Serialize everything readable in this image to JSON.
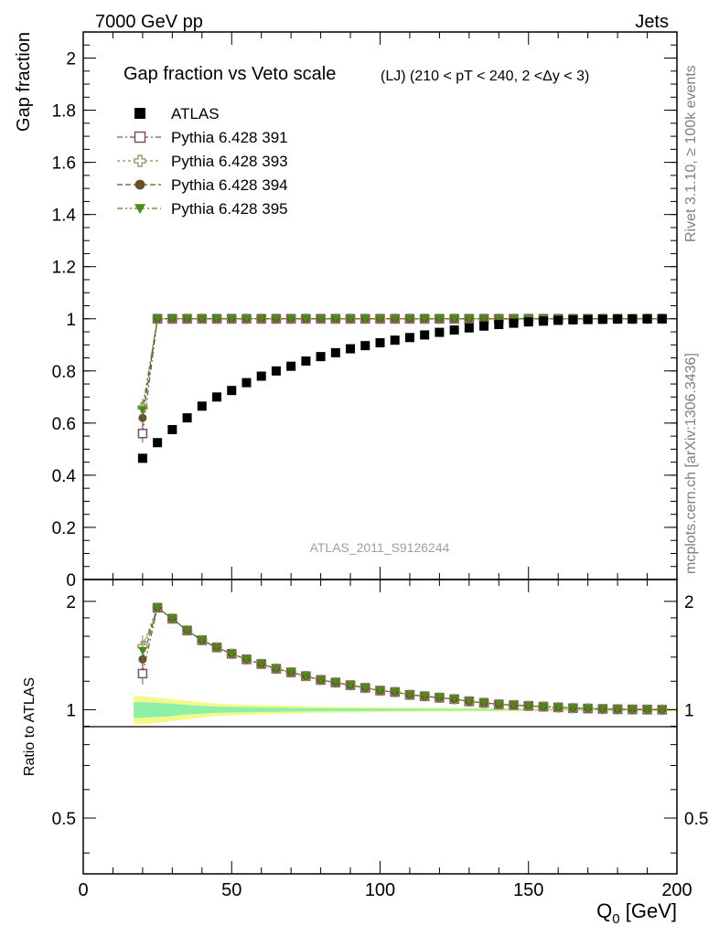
{
  "header": {
    "left": "7000 GeV pp",
    "right": "Jets"
  },
  "side_labels": {
    "rivet": "Rivet 3.1.10, ≥ 100k events",
    "mcplots": "mcplots.cern.ch [arXiv:1306.3436]"
  },
  "watermark": "ATLAS_2011_S9126244",
  "chart_data": [
    {
      "type": "scatter",
      "title": "Gap fraction vs Veto scale",
      "subtitle": "(LJ) (210 < pT < 240, 2 <Δy < 3)",
      "xlabel": "Q0 [GeV]",
      "xlabel_main": "Q",
      "xlabel_sub": "0",
      "xlabel_unit": " [GeV]",
      "ylabel": "Gap fraction",
      "xlim": [
        0,
        200
      ],
      "ylim": [
        0,
        2.1
      ],
      "xticks": [
        0,
        50,
        100,
        150,
        200
      ],
      "yticks": [
        0,
        0.2,
        0.4,
        0.6,
        0.8,
        1,
        1.2,
        1.4,
        1.6,
        1.8,
        2
      ],
      "ytick_labels": [
        "0",
        "0.2",
        "0.4",
        "0.6",
        "0.8",
        "1",
        "1.2",
        "1.4",
        "1.6",
        "1.8",
        "2"
      ],
      "legend_position": "top-left",
      "x": [
        20,
        25,
        30,
        35,
        40,
        45,
        50,
        55,
        60,
        65,
        70,
        75,
        80,
        85,
        90,
        95,
        100,
        105,
        110,
        115,
        120,
        125,
        130,
        135,
        140,
        145,
        150,
        155,
        160,
        165,
        170,
        175,
        180,
        185,
        190,
        195
      ],
      "series": [
        {
          "name": "ATLAS",
          "color": "#000000",
          "marker": "filled-square",
          "values": [
            0.465,
            0.525,
            0.575,
            0.62,
            0.665,
            0.7,
            0.725,
            0.755,
            0.78,
            0.8,
            0.818,
            0.838,
            0.855,
            0.87,
            0.885,
            0.897,
            0.908,
            0.918,
            0.928,
            0.938,
            0.948,
            0.957,
            0.965,
            0.972,
            0.978,
            0.983,
            0.988,
            0.991,
            0.994,
            0.996,
            0.997,
            0.998,
            0.999,
            0.999,
            1.0,
            1.0
          ]
        },
        {
          "name": "Pythia 6.428 391",
          "color": "#7b4f68",
          "marker": "open-square",
          "values": [
            0.56,
            1,
            1,
            1,
            1,
            1,
            1,
            1,
            1,
            1,
            1,
            1,
            1,
            1,
            1,
            1,
            1,
            1,
            1,
            1,
            1,
            1,
            1,
            1,
            1,
            1,
            1,
            1,
            1,
            1,
            1,
            1,
            1,
            1,
            1,
            1
          ]
        },
        {
          "name": "Pythia 6.428 393",
          "color": "#9a8a5a",
          "marker": "open-cross",
          "values": [
            0.66,
            1,
            1,
            1,
            1,
            1,
            1,
            1,
            1,
            1,
            1,
            1,
            1,
            1,
            1,
            1,
            1,
            1,
            1,
            1,
            1,
            1,
            1,
            1,
            1,
            1,
            1,
            1,
            1,
            1,
            1,
            1,
            1,
            1,
            1,
            1
          ]
        },
        {
          "name": "Pythia 6.428 394",
          "color": "#6b4e2a",
          "marker": "filled-circle",
          "values": [
            0.62,
            1,
            1,
            1,
            1,
            1,
            1,
            1,
            1,
            1,
            1,
            1,
            1,
            1,
            1,
            1,
            1,
            1,
            1,
            1,
            1,
            1,
            1,
            1,
            1,
            1,
            1,
            1,
            1,
            1,
            1,
            1,
            1,
            1,
            1,
            1
          ]
        },
        {
          "name": "Pythia 6.428 395",
          "color": "#4a8a18",
          "marker": "filled-triangle-down",
          "values": [
            0.65,
            1,
            1,
            1,
            1,
            1,
            1,
            1,
            1,
            1,
            1,
            1,
            1,
            1,
            1,
            1,
            1,
            1,
            1,
            1,
            1,
            1,
            1,
            1,
            1,
            1,
            1,
            1,
            1,
            1,
            1,
            1,
            1,
            1,
            1,
            1
          ]
        }
      ]
    },
    {
      "type": "scatter",
      "title": "",
      "xlabel": "Q0 [GeV]",
      "ylabel": "Ratio to ATLAS",
      "xlim": [
        0,
        200
      ],
      "ylim": [
        0.35,
        2.3
      ],
      "yscale": "log",
      "xticks": [
        0,
        50,
        100,
        150,
        200
      ],
      "xtick_labels": [
        "0",
        "50",
        "100",
        "150",
        "200"
      ],
      "yticks": [
        0.5,
        1,
        2
      ],
      "ytick_labels": [
        "0.5",
        "1",
        "2"
      ],
      "reference_line": 1,
      "band_x": [
        17,
        20,
        25,
        30,
        35,
        40,
        45,
        50,
        60,
        70,
        80,
        100,
        120,
        150,
        200
      ],
      "band_outer": [
        0.09,
        0.09,
        0.08,
        0.07,
        0.06,
        0.05,
        0.04,
        0.035,
        0.03,
        0.025,
        0.02,
        0.015,
        0.012,
        0.01,
        0.01
      ],
      "band_inner": [
        0.05,
        0.05,
        0.045,
        0.04,
        0.03,
        0.025,
        0.02,
        0.018,
        0.015,
        0.012,
        0.01,
        0.008,
        0.006,
        0.005,
        0.005
      ],
      "x": [
        20,
        25,
        30,
        35,
        40,
        45,
        50,
        55,
        60,
        65,
        70,
        75,
        80,
        85,
        90,
        95,
        100,
        105,
        110,
        115,
        120,
        125,
        130,
        135,
        140,
        145,
        150,
        155,
        160,
        165,
        170,
        175,
        180,
        185,
        190,
        195
      ],
      "series": [
        {
          "name": "Pythia 6.428 391",
          "color": "#7b4f68",
          "marker": "open-square",
          "values": [
            1.26,
            1.92,
            1.79,
            1.66,
            1.56,
            1.49,
            1.43,
            1.38,
            1.34,
            1.3,
            1.27,
            1.24,
            1.21,
            1.19,
            1.17,
            1.15,
            1.13,
            1.12,
            1.1,
            1.09,
            1.08,
            1.07,
            1.055,
            1.045,
            1.035,
            1.03,
            1.025,
            1.02,
            1.015,
            1.01,
            1.008,
            1.005,
            1.003,
            1.002,
            1.001,
            1.0
          ]
        },
        {
          "name": "Pythia 6.428 393",
          "color": "#9a8a5a",
          "marker": "open-cross",
          "values": [
            1.5,
            1.92,
            1.79,
            1.66,
            1.56,
            1.49,
            1.43,
            1.38,
            1.34,
            1.3,
            1.27,
            1.24,
            1.21,
            1.19,
            1.17,
            1.15,
            1.13,
            1.12,
            1.1,
            1.09,
            1.08,
            1.07,
            1.055,
            1.045,
            1.035,
            1.03,
            1.025,
            1.02,
            1.015,
            1.01,
            1.008,
            1.005,
            1.003,
            1.002,
            1.001,
            1.0
          ]
        },
        {
          "name": "Pythia 6.428 394",
          "color": "#6b4e2a",
          "marker": "filled-circle",
          "values": [
            1.38,
            1.92,
            1.79,
            1.66,
            1.56,
            1.49,
            1.43,
            1.38,
            1.34,
            1.3,
            1.27,
            1.24,
            1.21,
            1.19,
            1.17,
            1.15,
            1.13,
            1.12,
            1.1,
            1.09,
            1.08,
            1.07,
            1.055,
            1.045,
            1.035,
            1.03,
            1.025,
            1.02,
            1.015,
            1.01,
            1.008,
            1.005,
            1.003,
            1.002,
            1.001,
            1.0
          ]
        },
        {
          "name": "Pythia 6.428 395",
          "color": "#4a8a18",
          "marker": "filled-triangle-down",
          "values": [
            1.46,
            1.92,
            1.79,
            1.66,
            1.56,
            1.49,
            1.43,
            1.38,
            1.34,
            1.3,
            1.27,
            1.24,
            1.21,
            1.19,
            1.17,
            1.15,
            1.13,
            1.12,
            1.1,
            1.09,
            1.08,
            1.07,
            1.055,
            1.045,
            1.035,
            1.03,
            1.025,
            1.02,
            1.015,
            1.01,
            1.008,
            1.005,
            1.003,
            1.002,
            1.001,
            1.0
          ]
        }
      ]
    }
  ]
}
